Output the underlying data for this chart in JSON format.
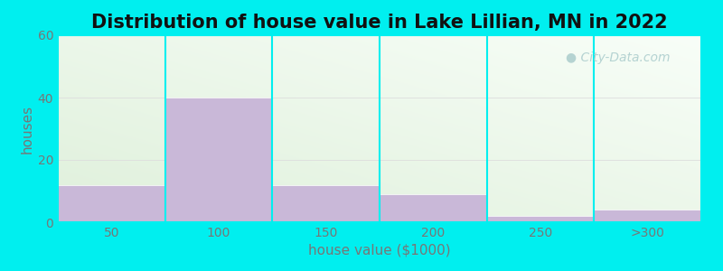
{
  "title": "Distribution of house value in Lake Lillian, MN in 2022",
  "xlabel": "house value ($1000)",
  "ylabel": "houses",
  "bar_labels": [
    "50",
    "100",
    "150",
    "200",
    "250",
    ">300"
  ],
  "bar_heights": [
    12,
    40,
    12,
    9,
    2,
    4
  ],
  "bar_color": "#c9b8d8",
  "bar_edge_color": "#ffffff",
  "ylim": [
    0,
    60
  ],
  "yticks": [
    0,
    20,
    40,
    60
  ],
  "background_outer": "#00efef",
  "bg_gradient_top_left": "#dff0db",
  "bg_gradient_bottom_right": "#f8fef8",
  "title_fontsize": 15,
  "axis_label_fontsize": 11,
  "tick_fontsize": 10,
  "watermark_text": "City-Data.com",
  "watermark_color": "#aacccc",
  "title_color": "#111111",
  "tick_color": "#777777",
  "label_color": "#777777",
  "grid_color": "#dddddd",
  "divider_color": "#00efef"
}
